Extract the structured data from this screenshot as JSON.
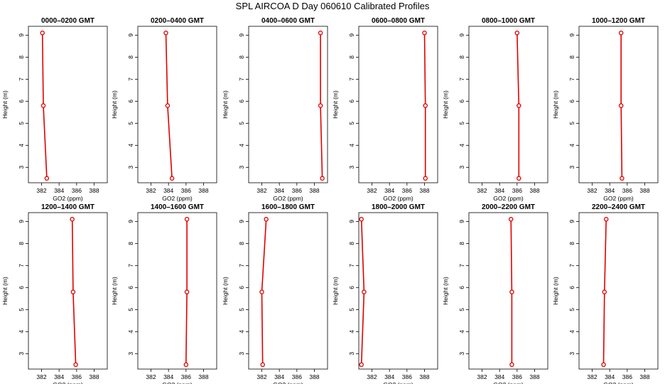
{
  "chart_data": {
    "type": "line",
    "title": "SPL AIRCOA D  Day 060610  Calibrated Profiles",
    "xlabel": "GO2 (ppm)",
    "ylabel": "Height (m)",
    "xlim": [
      380.5,
      389.5
    ],
    "ylim": [
      2.3,
      9.4
    ],
    "xticks": [
      382,
      384,
      386,
      388
    ],
    "yticks": [
      3,
      4,
      5,
      6,
      7,
      8,
      9
    ],
    "heights": [
      2.5,
      5.8,
      9.1
    ],
    "line_color": "#e00000",
    "marker_color": "#e00000",
    "panels": [
      {
        "title": "0000–0200 GMT",
        "values": [
          382.6,
          382.2,
          382.1
        ]
      },
      {
        "title": "0200–0400 GMT",
        "values": [
          384.4,
          383.9,
          383.7
        ]
      },
      {
        "title": "0400–0600 GMT",
        "values": [
          388.9,
          388.7,
          388.7
        ]
      },
      {
        "title": "0600–0800 GMT",
        "values": [
          388.1,
          388.1,
          388.0
        ]
      },
      {
        "title": "0800–1000 GMT",
        "values": [
          386.2,
          386.2,
          386.0
        ]
      },
      {
        "title": "1000–1200 GMT",
        "values": [
          385.4,
          385.3,
          385.3
        ]
      },
      {
        "title": "1200–1400 GMT",
        "values": [
          385.9,
          385.6,
          385.5
        ]
      },
      {
        "title": "1400–1600 GMT",
        "values": [
          386.0,
          386.1,
          386.1
        ]
      },
      {
        "title": "1600–1800 GMT",
        "values": [
          382.1,
          382.0,
          382.5
        ]
      },
      {
        "title": "1800–2000 GMT",
        "values": [
          380.8,
          381.1,
          380.8
        ]
      },
      {
        "title": "2000–2200 GMT",
        "values": [
          385.4,
          385.4,
          385.3
        ]
      },
      {
        "title": "2200–2400 GMT",
        "values": [
          383.3,
          383.4,
          383.6
        ]
      }
    ]
  }
}
